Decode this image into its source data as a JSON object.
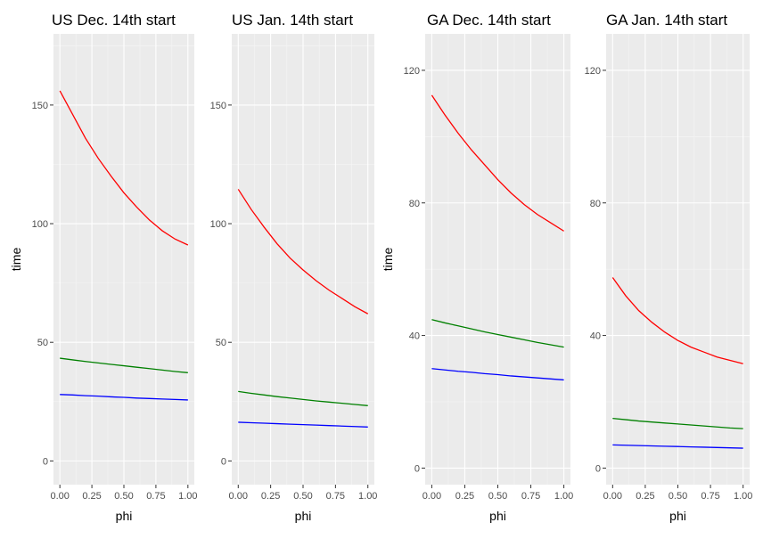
{
  "chart_data": [
    {
      "type": "line",
      "title": "US Dec. 14th start",
      "xlabel": "phi",
      "ylabel": "time",
      "xlim": [
        -0.05,
        1.05
      ],
      "ylim": [
        -10,
        180
      ],
      "xticks": [
        0,
        0.25,
        0.5,
        0.75,
        1
      ],
      "xtick_labels": [
        "0.00",
        "0.25",
        "0.50",
        "0.75",
        "1.00"
      ],
      "yticks": [
        0,
        50,
        100,
        150
      ],
      "ytick_labels": [
        "0",
        "50",
        "100",
        "150"
      ],
      "grid": true,
      "x": [
        0,
        0.1,
        0.2,
        0.3,
        0.4,
        0.5,
        0.6,
        0.7,
        0.8,
        0.9,
        1.0
      ],
      "series": [
        {
          "color": "#ff0000",
          "values": [
            156,
            146,
            136,
            127.5,
            120,
            113,
            107,
            101.5,
            97,
            93.5,
            91
          ]
        },
        {
          "color": "#008000",
          "values": [
            43.3,
            42.6,
            41.9,
            41.3,
            40.7,
            40.1,
            39.5,
            38.9,
            38.3,
            37.7,
            37.2
          ]
        },
        {
          "color": "#0000ff",
          "values": [
            28,
            27.8,
            27.5,
            27.3,
            27,
            26.8,
            26.5,
            26.3,
            26.1,
            25.9,
            25.7
          ]
        }
      ]
    },
    {
      "type": "line",
      "title": "US Jan. 14th start",
      "xlabel": "phi",
      "ylabel": "",
      "xlim": [
        -0.05,
        1.05
      ],
      "ylim": [
        -10,
        180
      ],
      "xticks": [
        0,
        0.25,
        0.5,
        0.75,
        1
      ],
      "xtick_labels": [
        "0.00",
        "0.25",
        "0.50",
        "0.75",
        "1.00"
      ],
      "yticks": [
        0,
        50,
        100,
        150
      ],
      "ytick_labels": [
        "0",
        "50",
        "100",
        "150"
      ],
      "grid": true,
      "x": [
        0,
        0.1,
        0.2,
        0.3,
        0.4,
        0.5,
        0.6,
        0.7,
        0.8,
        0.9,
        1.0
      ],
      "series": [
        {
          "color": "#ff0000",
          "values": [
            114.5,
            106,
            98.5,
            91.5,
            85.5,
            80.5,
            76,
            72,
            68.5,
            65,
            62
          ]
        },
        {
          "color": "#008000",
          "values": [
            29.3,
            28.5,
            27.8,
            27.1,
            26.5,
            25.9,
            25.3,
            24.8,
            24.3,
            23.8,
            23.3
          ]
        },
        {
          "color": "#0000ff",
          "values": [
            16.3,
            16.1,
            15.9,
            15.7,
            15.5,
            15.3,
            15.1,
            14.9,
            14.7,
            14.5,
            14.3
          ]
        }
      ]
    },
    {
      "type": "line",
      "title": "GA Dec. 14th start",
      "xlabel": "phi",
      "ylabel": "time",
      "xlim": [
        -0.05,
        1.05
      ],
      "ylim": [
        -5,
        131
      ],
      "xticks": [
        0,
        0.25,
        0.5,
        0.75,
        1
      ],
      "xtick_labels": [
        "0.00",
        "0.25",
        "0.50",
        "0.75",
        "1.00"
      ],
      "yticks": [
        0,
        40,
        80,
        120
      ],
      "ytick_labels": [
        "0",
        "40",
        "80",
        "120"
      ],
      "grid": true,
      "x": [
        0,
        0.1,
        0.2,
        0.3,
        0.4,
        0.5,
        0.6,
        0.7,
        0.8,
        0.9,
        1.0
      ],
      "series": [
        {
          "color": "#ff0000",
          "values": [
            112.5,
            106.5,
            101,
            96,
            91.5,
            87,
            83,
            79.5,
            76.5,
            74,
            71.5
          ]
        },
        {
          "color": "#008000",
          "values": [
            44.8,
            43.8,
            42.9,
            42,
            41.1,
            40.3,
            39.5,
            38.7,
            37.9,
            37.2,
            36.5
          ]
        },
        {
          "color": "#0000ff",
          "values": [
            30,
            29.6,
            29.2,
            28.9,
            28.5,
            28.2,
            27.8,
            27.5,
            27.2,
            26.9,
            26.6
          ]
        }
      ]
    },
    {
      "type": "line",
      "title": "GA Jan. 14th start",
      "xlabel": "phi",
      "ylabel": "",
      "xlim": [
        -0.05,
        1.05
      ],
      "ylim": [
        -5,
        131
      ],
      "xticks": [
        0,
        0.25,
        0.5,
        0.75,
        1
      ],
      "xtick_labels": [
        "0.00",
        "0.25",
        "0.50",
        "0.75",
        "1.00"
      ],
      "yticks": [
        0,
        40,
        80,
        120
      ],
      "ytick_labels": [
        "0",
        "40",
        "80",
        "120"
      ],
      "grid": true,
      "x": [
        0,
        0.1,
        0.2,
        0.3,
        0.4,
        0.5,
        0.6,
        0.7,
        0.8,
        0.9,
        1.0
      ],
      "series": [
        {
          "color": "#ff0000",
          "values": [
            57.5,
            52,
            47.5,
            44,
            41,
            38.5,
            36.5,
            35,
            33.5,
            32.5,
            31.5
          ]
        },
        {
          "color": "#008000",
          "values": [
            15,
            14.6,
            14.2,
            13.9,
            13.6,
            13.3,
            13,
            12.7,
            12.4,
            12.1,
            11.9
          ]
        },
        {
          "color": "#0000ff",
          "values": [
            7,
            6.9,
            6.8,
            6.7,
            6.6,
            6.5,
            6.4,
            6.3,
            6.2,
            6.1,
            6
          ]
        }
      ]
    }
  ]
}
